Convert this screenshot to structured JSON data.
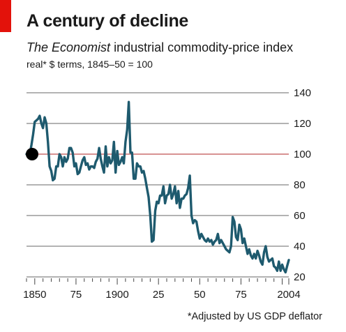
{
  "header": {
    "title": "A century of decline",
    "subtitle_publication": "The Economist",
    "subtitle_rest": " industrial commodity-price index",
    "units": "real* $ terms, 1845–50 = 100"
  },
  "footnote": "*Adjusted by US GDP deflator",
  "colors": {
    "line": "#1e5a6e",
    "accent": "#e3120b",
    "grid": "#9a9a9a",
    "reference": "#e07070"
  },
  "chart_data": {
    "type": "line",
    "title": "A century of decline",
    "ylim": [
      20,
      140
    ],
    "xlim": [
      1845,
      2004
    ],
    "y_ticks": [
      20,
      40,
      60,
      80,
      100,
      120,
      140
    ],
    "x_tick_labels": [
      {
        "x": 1850,
        "label": "1850"
      },
      {
        "x": 1875,
        "label": "75"
      },
      {
        "x": 1900,
        "label": "1900"
      },
      {
        "x": 1925,
        "label": "25"
      },
      {
        "x": 1950,
        "label": "50"
      },
      {
        "x": 1975,
        "label": "75"
      },
      {
        "x": 2004,
        "label": "2004"
      }
    ],
    "grid": true,
    "reference_line": 100,
    "start_marker": {
      "x": 1845,
      "y": 100
    },
    "series": [
      {
        "values": [
          [
            1845,
            100
          ],
          [
            1846,
            101
          ],
          [
            1847,
            100
          ],
          [
            1848,
            106
          ],
          [
            1849,
            113
          ],
          [
            1850,
            121
          ],
          [
            1851,
            122
          ],
          [
            1852,
            123
          ],
          [
            1853,
            125
          ],
          [
            1854,
            120
          ],
          [
            1855,
            117
          ],
          [
            1856,
            124
          ],
          [
            1857,
            120
          ],
          [
            1858,
            108
          ],
          [
            1859,
            92
          ],
          [
            1860,
            89
          ],
          [
            1861,
            83
          ],
          [
            1862,
            84
          ],
          [
            1863,
            92
          ],
          [
            1864,
            92
          ],
          [
            1865,
            100
          ],
          [
            1866,
            98
          ],
          [
            1867,
            92
          ],
          [
            1868,
            98
          ],
          [
            1869,
            95
          ],
          [
            1870,
            97
          ],
          [
            1871,
            104
          ],
          [
            1872,
            104
          ],
          [
            1873,
            101
          ],
          [
            1874,
            92
          ],
          [
            1875,
            94
          ],
          [
            1876,
            87
          ],
          [
            1877,
            88
          ],
          [
            1878,
            92
          ],
          [
            1879,
            96
          ],
          [
            1880,
            98
          ],
          [
            1881,
            93
          ],
          [
            1882,
            94
          ],
          [
            1883,
            90
          ],
          [
            1884,
            92
          ],
          [
            1885,
            92
          ],
          [
            1886,
            91
          ],
          [
            1887,
            95
          ],
          [
            1888,
            97
          ],
          [
            1889,
            104
          ],
          [
            1890,
            97
          ],
          [
            1891,
            92
          ],
          [
            1892,
            88
          ],
          [
            1893,
            105
          ],
          [
            1894,
            92
          ],
          [
            1895,
            98
          ],
          [
            1896,
            94
          ],
          [
            1897,
            96
          ],
          [
            1898,
            108
          ],
          [
            1899,
            88
          ],
          [
            1900,
            102
          ],
          [
            1901,
            93
          ],
          [
            1902,
            95
          ],
          [
            1903,
            98
          ],
          [
            1904,
            94
          ],
          [
            1905,
            108
          ],
          [
            1906,
            116
          ],
          [
            1907,
            134
          ],
          [
            1908,
            101
          ],
          [
            1909,
            101
          ],
          [
            1910,
            84
          ],
          [
            1911,
            84
          ],
          [
            1912,
            94
          ],
          [
            1913,
            92
          ],
          [
            1914,
            92
          ],
          [
            1915,
            88
          ],
          [
            1916,
            89
          ],
          [
            1917,
            84
          ],
          [
            1918,
            78
          ],
          [
            1919,
            72
          ],
          [
            1920,
            60
          ],
          [
            1921,
            43
          ],
          [
            1922,
            44
          ],
          [
            1923,
            63
          ],
          [
            1924,
            69
          ],
          [
            1925,
            68
          ],
          [
            1926,
            73
          ],
          [
            1927,
            73
          ],
          [
            1928,
            79
          ],
          [
            1929,
            68
          ],
          [
            1930,
            73
          ],
          [
            1931,
            74
          ],
          [
            1932,
            80
          ],
          [
            1933,
            71
          ],
          [
            1934,
            74
          ],
          [
            1935,
            79
          ],
          [
            1936,
            68
          ],
          [
            1937,
            76
          ],
          [
            1938,
            65
          ],
          [
            1939,
            71
          ],
          [
            1940,
            71
          ],
          [
            1941,
            73
          ],
          [
            1942,
            74
          ],
          [
            1943,
            78
          ],
          [
            1944,
            86
          ],
          [
            1945,
            60
          ],
          [
            1946,
            55
          ],
          [
            1947,
            57
          ],
          [
            1948,
            56
          ],
          [
            1949,
            50
          ],
          [
            1950,
            45
          ],
          [
            1951,
            48
          ],
          [
            1952,
            46
          ],
          [
            1953,
            44
          ],
          [
            1954,
            43
          ],
          [
            1955,
            45
          ],
          [
            1956,
            43
          ],
          [
            1957,
            44
          ],
          [
            1958,
            41
          ],
          [
            1959,
            43
          ],
          [
            1960,
            44
          ],
          [
            1961,
            48
          ],
          [
            1962,
            42
          ],
          [
            1963,
            44
          ],
          [
            1964,
            42
          ],
          [
            1965,
            40
          ],
          [
            1966,
            38
          ],
          [
            1967,
            37
          ],
          [
            1968,
            36
          ],
          [
            1969,
            40
          ],
          [
            1970,
            59
          ],
          [
            1971,
            56
          ],
          [
            1972,
            46
          ],
          [
            1973,
            44
          ],
          [
            1974,
            54
          ],
          [
            1975,
            51
          ],
          [
            1976,
            42
          ],
          [
            1977,
            45
          ],
          [
            1978,
            40
          ],
          [
            1979,
            35
          ],
          [
            1980,
            38
          ],
          [
            1981,
            34
          ],
          [
            1982,
            32
          ],
          [
            1983,
            35
          ],
          [
            1984,
            32
          ],
          [
            1985,
            37
          ],
          [
            1986,
            34
          ],
          [
            1987,
            30
          ],
          [
            1988,
            28
          ],
          [
            1989,
            36
          ],
          [
            1990,
            40
          ],
          [
            1991,
            33
          ],
          [
            1992,
            30
          ],
          [
            1993,
            31
          ],
          [
            1994,
            32
          ],
          [
            1995,
            27
          ],
          [
            1996,
            26
          ],
          [
            1997,
            24
          ],
          [
            1998,
            30
          ],
          [
            1999,
            24
          ],
          [
            2000,
            28
          ],
          [
            2001,
            25
          ],
          [
            2002,
            23
          ],
          [
            2003,
            27
          ],
          [
            2004,
            31
          ]
        ]
      }
    ]
  }
}
